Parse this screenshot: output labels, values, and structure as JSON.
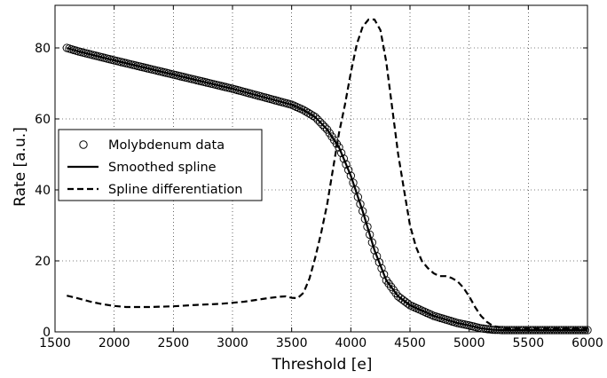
{
  "chart_data": {
    "type": "line",
    "xlabel": "Threshold [e]",
    "ylabel": "Rate [a.u.]",
    "xlim": [
      1500,
      6000
    ],
    "ylim": [
      0,
      92
    ],
    "xticks": [
      1500,
      2000,
      2500,
      3000,
      3500,
      4000,
      4500,
      5000,
      5500,
      6000
    ],
    "yticks": [
      0,
      20,
      40,
      60,
      80
    ],
    "grid": true,
    "legend_position": "center-left",
    "series": [
      {
        "name": "Molybdenum data",
        "style": "markers-open-circle",
        "color": "#000000",
        "x_range": [
          1600,
          6000
        ],
        "x_step": 20,
        "knots": [
          [
            1600,
            80
          ],
          [
            1700,
            79
          ],
          [
            2000,
            76.5
          ],
          [
            2500,
            72.5
          ],
          [
            3000,
            68.5
          ],
          [
            3500,
            64
          ],
          [
            3600,
            62.5
          ],
          [
            3700,
            60.5
          ],
          [
            3800,
            57
          ],
          [
            3900,
            52
          ],
          [
            4000,
            44
          ],
          [
            4100,
            34
          ],
          [
            4200,
            23
          ],
          [
            4300,
            14.5
          ],
          [
            4400,
            10
          ],
          [
            4500,
            7.5
          ],
          [
            4600,
            6
          ],
          [
            4700,
            4.5
          ],
          [
            4800,
            3.5
          ],
          [
            4900,
            2.5
          ],
          [
            5000,
            1.8
          ],
          [
            5100,
            1
          ],
          [
            5200,
            0.6
          ],
          [
            5300,
            0.5
          ],
          [
            6000,
            0.5
          ]
        ]
      },
      {
        "name": "Smoothed spline",
        "style": "solid",
        "color": "#000000",
        "x": [
          1600,
          1700,
          2000,
          2500,
          3000,
          3500,
          3600,
          3700,
          3800,
          3900,
          4000,
          4100,
          4200,
          4300,
          4400,
          4500,
          4600,
          4700,
          4800,
          4900,
          5000,
          5100,
          5200,
          5300,
          5400,
          5500,
          6000
        ],
        "y": [
          80,
          79,
          76.5,
          72.5,
          68.5,
          64,
          62.5,
          60.5,
          57,
          52,
          44,
          34,
          23,
          14.5,
          10,
          7.5,
          6,
          4.5,
          3.5,
          2.5,
          1.8,
          1,
          0.6,
          0.5,
          0.5,
          0.5,
          0.5
        ]
      },
      {
        "name": "Spline differentiation",
        "style": "dashed",
        "color": "#000000",
        "x": [
          1600,
          1700,
          1800,
          1900,
          2000,
          2100,
          2300,
          2500,
          2700,
          2900,
          3100,
          3200,
          3300,
          3400,
          3450,
          3500,
          3550,
          3600,
          3650,
          3700,
          3750,
          3800,
          3850,
          3900,
          3950,
          4000,
          4050,
          4100,
          4150,
          4200,
          4250,
          4300,
          4350,
          4400,
          4450,
          4500,
          4550,
          4600,
          4650,
          4700,
          4750,
          4800,
          4850,
          4900,
          4950,
          5000,
          5050,
          5100,
          5150,
          5200,
          5300,
          6000
        ],
        "y": [
          10.2,
          9.4,
          8.5,
          7.8,
          7.3,
          7,
          7,
          7.2,
          7.6,
          7.9,
          8.5,
          9,
          9.5,
          9.9,
          10,
          9.6,
          9.5,
          11,
          15,
          21,
          28,
          36,
          46,
          56,
          64,
          73,
          81,
          86,
          88,
          88,
          85,
          76,
          63,
          50,
          40,
          30,
          24,
          20,
          18,
          16.5,
          15.7,
          15.7,
          15.2,
          14.3,
          12.5,
          10,
          7,
          4.5,
          2.8,
          1.7,
          1,
          1
        ]
      }
    ]
  }
}
